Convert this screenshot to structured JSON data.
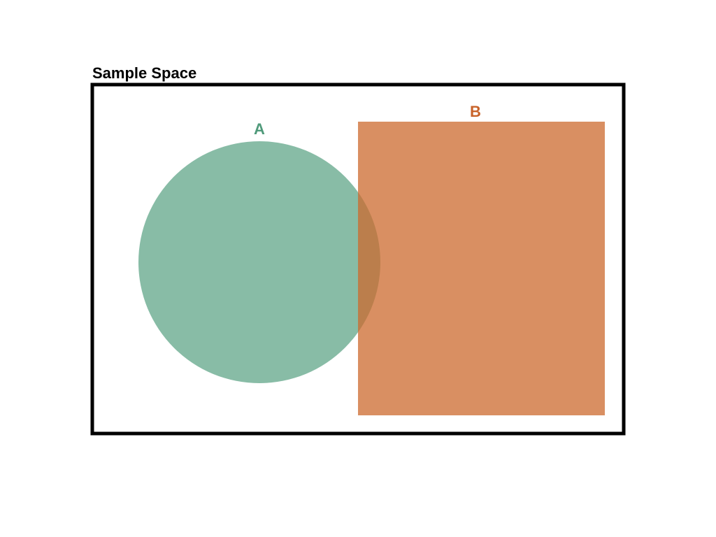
{
  "diagram": {
    "title": "Sample Space",
    "title_color": "#000000",
    "frame_color": "#000000",
    "sets": {
      "a": {
        "label": "A",
        "shape": "circle",
        "fill": "#5aa283",
        "fill_opacity": 0.72,
        "label_color": "#4f9a7a"
      },
      "b": {
        "label": "B",
        "shape": "rectangle",
        "fill": "#cc6a2d",
        "fill_opacity": 0.75,
        "label_color": "#c8632a"
      }
    },
    "overlap": "A ∩ B"
  }
}
